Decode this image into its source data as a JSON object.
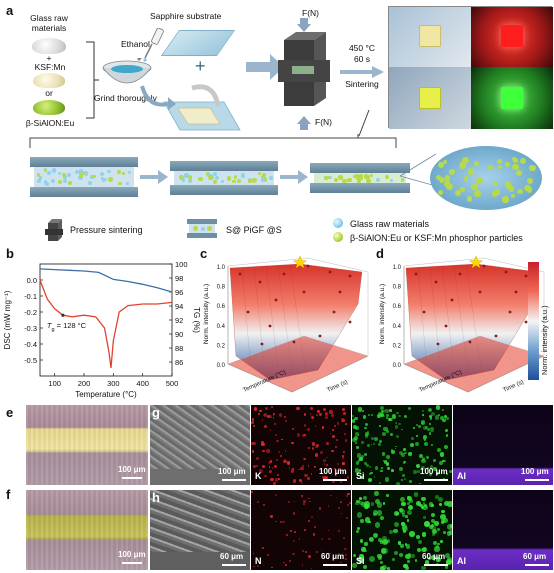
{
  "panels": {
    "a": "a",
    "b": "b",
    "c": "c",
    "d": "d",
    "e": "e",
    "f": "f",
    "g": "g",
    "h": "h"
  },
  "panel_a": {
    "glass_raw_materials": "Glass raw\nmaterials",
    "plus1": "+",
    "ksf": "KSF:Mn",
    "or": "or",
    "sialon": "β-SiAlON:Eu",
    "ethanol": "Ethanol",
    "grind": "Grind thoroughly",
    "sapphire": "Sapphire substrate",
    "plus2": "+",
    "force_top": "F(N)",
    "force_bottom": "F(N)",
    "temp": "450 °C",
    "time": "60 s",
    "sintering": "Sintering"
  },
  "legend": {
    "pressure": "Pressure sintering",
    "sample": "S@ PiGF @S",
    "glass": "Glass raw materials",
    "phosphor": "β-SiAlON:Eu or KSF:Mn phosphor particles"
  },
  "colors": {
    "glass_particle": "#8fd3ea",
    "phosphor_particle": "#b7d94a",
    "dsc_line": "#e2432c",
    "tg_line": "#3d6fa5",
    "surface_top": "#d7332a",
    "surface_bottom": "#2b5ea8",
    "star": "#ffd700"
  },
  "chart_data": [
    {
      "type": "line",
      "panel": "b",
      "xlabel": "Temperature (°C)",
      "ylabel": "DSC (mW mg⁻¹)",
      "y2label": "TG (%)",
      "xlim": [
        50,
        500
      ],
      "ylim": [
        -0.6,
        0.1
      ],
      "y2lim": [
        84,
        100
      ],
      "x_ticks": [
        "100",
        "200",
        "300",
        "400",
        "500"
      ],
      "y_ticks": [
        "0.0",
        "-0.1",
        "-0.2",
        "-0.3",
        "-0.4",
        "-0.5"
      ],
      "y2_ticks": [
        "100",
        "98",
        "96",
        "94",
        "92",
        "90",
        "88",
        "86"
      ],
      "annotation": "Tg = 128 °C",
      "annotation_sub": "g",
      "annotation_main": "T",
      "annotation_rest": " = 128 °C",
      "series": [
        {
          "axis": "left",
          "x": [
            50,
            75,
            100,
            128,
            160,
            200,
            240,
            270,
            285,
            292,
            300,
            320,
            350,
            400,
            450,
            500
          ],
          "y": [
            0.0,
            -0.12,
            -0.18,
            -0.22,
            -0.23,
            -0.22,
            -0.23,
            -0.3,
            -0.45,
            -0.55,
            -0.38,
            -0.2,
            -0.16,
            -0.15,
            -0.15,
            -0.14
          ]
        },
        {
          "axis": "right",
          "x": [
            50,
            100,
            150,
            200,
            250,
            280,
            300,
            350,
            400,
            450,
            500
          ],
          "y": [
            99.3,
            99.2,
            99.1,
            99.0,
            98.8,
            98.2,
            97.8,
            97.5,
            97.1,
            96.6,
            96.0
          ]
        }
      ]
    },
    {
      "type": "surface",
      "panel": "c",
      "zlabel": "Norm. intensity (a.u.)",
      "xlabel": "Temperature (°C)",
      "ylabel": "Time (s)",
      "z_ticks": [
        "1.0",
        "0.8",
        "0.6",
        "0.4",
        "0.2",
        "0.0"
      ]
    },
    {
      "type": "surface",
      "panel": "d",
      "zlabel": "Norm. intensity (a.u.)",
      "xlabel": "Temperature (°C)",
      "ylabel": "Time (s)",
      "z_ticks": [
        "1.0",
        "0.8",
        "0.6",
        "0.4",
        "0.2",
        "0.0"
      ]
    },
    {
      "type": "heatmap-colorbar",
      "panel": "cd",
      "label": "Norm. intensity (a.u.)"
    }
  ],
  "panel_e": {
    "scale": "100 μm"
  },
  "panel_f": {
    "scale": "100 μm"
  },
  "row_g": [
    {
      "element": "",
      "scale": "100 μm"
    },
    {
      "element": "K",
      "scale": "100 μm"
    },
    {
      "element": "Si",
      "scale": "100 μm"
    },
    {
      "element": "Al",
      "scale": "100 μm"
    }
  ],
  "row_h": [
    {
      "element": "",
      "scale": "60 μm"
    },
    {
      "element": "N",
      "scale": "60 μm"
    },
    {
      "element": "Si",
      "scale": "60 μm"
    },
    {
      "element": "Al",
      "scale": "60 μm"
    }
  ]
}
